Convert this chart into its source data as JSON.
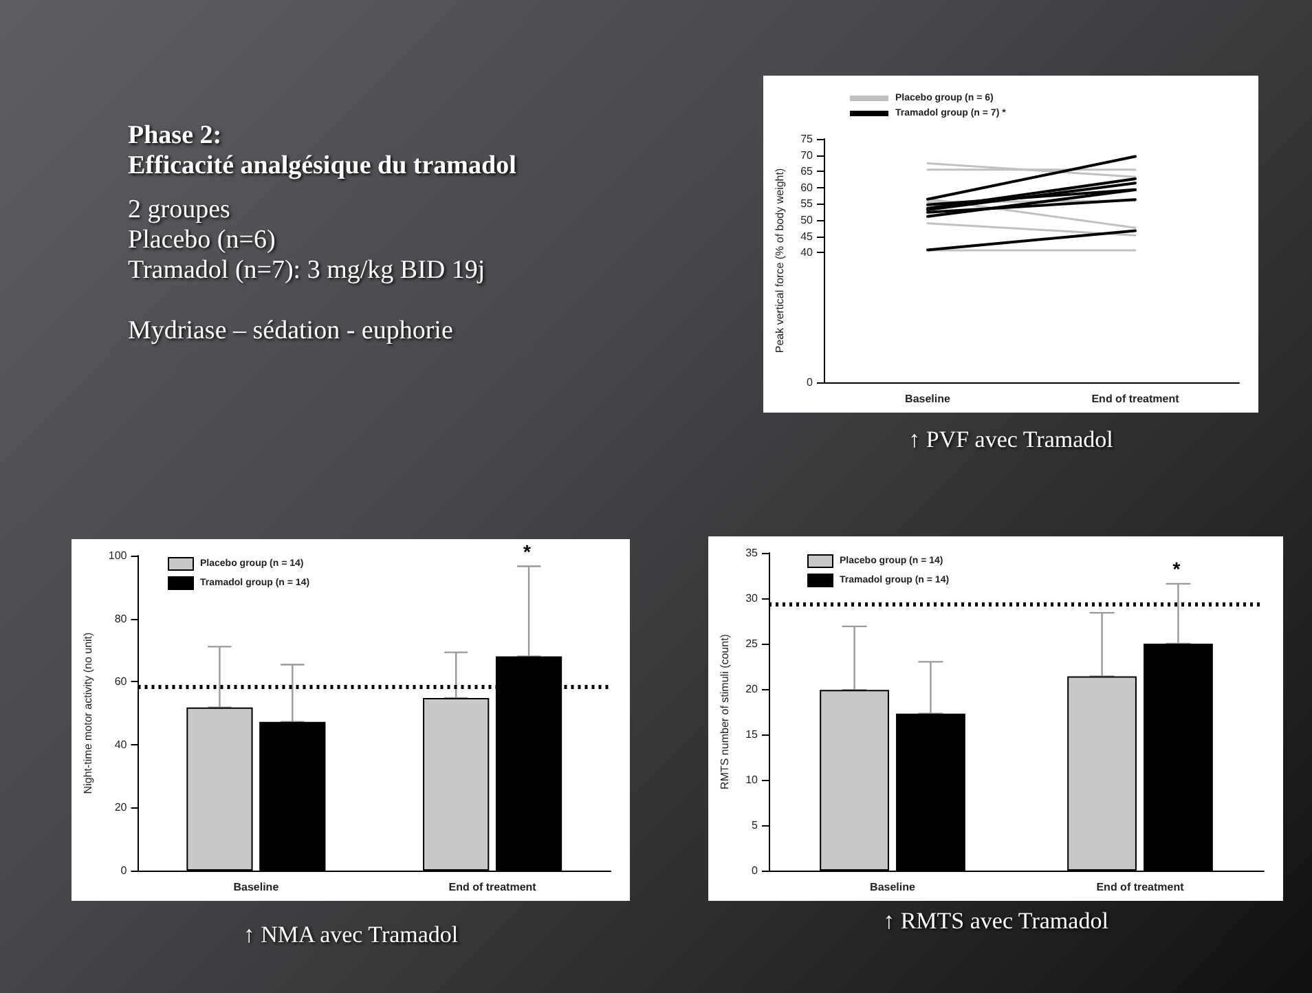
{
  "chart_data": [
    {
      "type": "other",
      "title": "Phase 2:",
      "subtitle": "Efficacité analgésique du tramadol",
      "annotations": [
        "2 groupes",
        "Placebo (n=6)",
        "Tramadol (n=7): 3 mg/kg BID 19j",
        "Mydriase – sédation - euphorie"
      ]
    },
    {
      "type": "line",
      "ylabel": "Peak vertical force (% of body weight)",
      "categories": [
        "Baseline",
        "End of treatment"
      ],
      "ylim": [
        0,
        75
      ],
      "yticks": [
        0,
        40,
        45,
        50,
        55,
        60,
        65,
        70,
        75
      ],
      "legend": "top left",
      "annotations": [
        "↑ PVF avec Tramadol"
      ],
      "series": [
        {
          "name": "Placebo group (n = 6)",
          "color": "#c0c0c0",
          "values": [
            67.5,
            63.3
          ]
        },
        {
          "color": "#c0c0c0",
          "values": [
            65.5,
            65.5
          ]
        },
        {
          "color": "#c0c0c0",
          "values": [
            56.5,
            47.6
          ]
        },
        {
          "color": "#c0c0c0",
          "values": [
            49,
            45.3
          ]
        },
        {
          "color": "#c0c0c0",
          "values": [
            40.7,
            40.7
          ]
        },
        {
          "color": "#c0c0c0",
          "values": [
            55.5,
            56
          ]
        },
        {
          "name": "Tramadol group (n = 7) *",
          "color": "#000000",
          "values": [
            56.4,
            69.6
          ]
        },
        {
          "color": "#000000",
          "values": [
            54.7,
            59.4
          ]
        },
        {
          "color": "#000000",
          "values": [
            53.6,
            62.7
          ]
        },
        {
          "color": "#000000",
          "values": [
            53.2,
            61.4
          ]
        },
        {
          "color": "#000000",
          "values": [
            52.4,
            56.3
          ]
        },
        {
          "color": "#000000",
          "values": [
            51.1,
            59.3
          ]
        },
        {
          "color": "#000000",
          "values": [
            40.8,
            46.7
          ]
        }
      ]
    },
    {
      "type": "bar",
      "ylabel": "Night-time motor activity (no unit)",
      "categories": [
        "Baseline",
        "End of treatment"
      ],
      "ylim": [
        0,
        100
      ],
      "yticks": [
        0,
        20,
        40,
        60,
        80,
        100
      ],
      "legend": "top left",
      "ref_lines": [
        {
          "axis": "y",
          "value": 58.6,
          "line_style": "dotted",
          "color": "#000000"
        }
      ],
      "annotations": [
        "*",
        "↑ NMA avec Tramadol"
      ],
      "series": [
        {
          "name": "Placebo group (n = 14)",
          "color": "#c8c8c8",
          "values": [
            51.8,
            54.8
          ],
          "errors": [
            [
              51.8,
              71.1
            ],
            [
              54.8,
              69.3
            ]
          ]
        },
        {
          "name": "Tramadol group (n = 14)",
          "color": "#000000",
          "values": [
            47.2,
            68
          ],
          "errors": [
            [
              47.2,
              65.4
            ],
            [
              68,
              96.6
            ]
          ]
        }
      ]
    },
    {
      "type": "bar",
      "ylabel": "RMTS number of stimuli (count)",
      "categories": [
        "Baseline",
        "End of treatment"
      ],
      "ylim": [
        0,
        35
      ],
      "yticks": [
        0,
        5,
        10,
        15,
        20,
        25,
        30,
        35
      ],
      "legend": "top left",
      "ref_lines": [
        {
          "axis": "y",
          "value": 29.4,
          "line_style": "dotted",
          "color": "#000000"
        }
      ],
      "annotations": [
        "*",
        "↑ RMTS avec Tramadol"
      ],
      "series": [
        {
          "name": "Placebo group (n = 14)",
          "color": "#c8c8c8",
          "values": [
            19.9,
            21.4
          ],
          "errors": [
            [
              19.9,
              26.9
            ],
            [
              21.4,
              28.4
            ]
          ]
        },
        {
          "name": "Tramadol group (n = 14)",
          "color": "#000000",
          "values": [
            17.3,
            25
          ],
          "errors": [
            [
              17.3,
              23
            ],
            [
              25,
              31.6
            ]
          ]
        }
      ]
    }
  ]
}
